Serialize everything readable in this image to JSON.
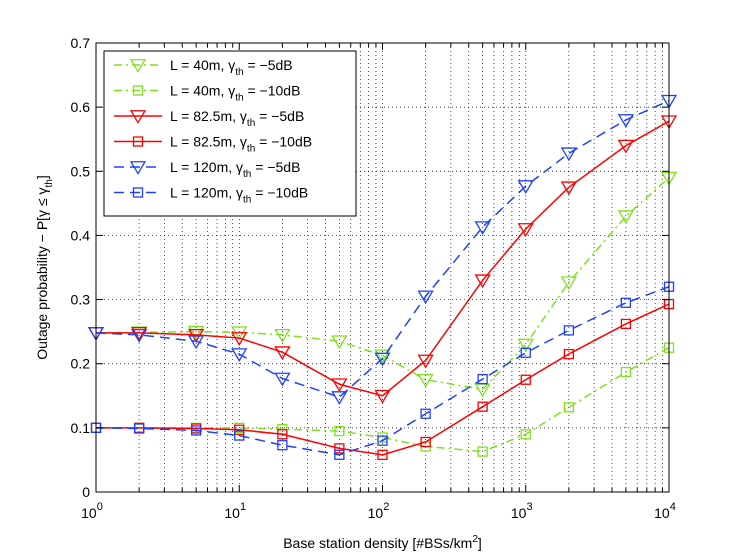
{
  "chart_data": {
    "type": "line",
    "x_scale": "log",
    "xlim": [
      1,
      10000
    ],
    "ylim": [
      0,
      0.7
    ],
    "grid": true,
    "xlabel_parts": {
      "main": "Base station density [#BSs/km",
      "sup": "2",
      "end": "]"
    },
    "ylabel_parts": {
      "main": "Outage probability − P[γ ≤ γ",
      "sub": "th",
      "end": "]"
    },
    "x_ticks": [
      {
        "value": 1,
        "base": "10",
        "exp": "0"
      },
      {
        "value": 10,
        "base": "10",
        "exp": "1"
      },
      {
        "value": 100,
        "base": "10",
        "exp": "2"
      },
      {
        "value": 1000,
        "base": "10",
        "exp": "3"
      },
      {
        "value": 10000,
        "base": "10",
        "exp": "4"
      }
    ],
    "y_ticks": [
      {
        "value": 0,
        "label": "0"
      },
      {
        "value": 0.1,
        "label": "0.1"
      },
      {
        "value": 0.2,
        "label": "0.2"
      },
      {
        "value": 0.3,
        "label": "0.3"
      },
      {
        "value": 0.4,
        "label": "0.4"
      },
      {
        "value": 0.5,
        "label": "0.5"
      },
      {
        "value": 0.6,
        "label": "0.6"
      },
      {
        "value": 0.7,
        "label": "0.7"
      }
    ],
    "x": [
      1,
      2,
      5,
      10,
      20,
      50,
      100,
      200,
      500,
      1000,
      2000,
      5000,
      10000
    ],
    "legend_position": "top-left",
    "series": [
      {
        "name": "L = 40m, γth = −5dB",
        "legend_main": "L = 40m, γ",
        "legend_sub": "th",
        "legend_end": " = −5dB",
        "color": "#7fe020",
        "dash": "dashdot",
        "marker": "triangle-down",
        "values": [
          0.248,
          0.249,
          0.25,
          0.249,
          0.245,
          0.235,
          0.213,
          0.175,
          0.16,
          0.23,
          0.327,
          0.43,
          0.49
        ]
      },
      {
        "name": "L = 40m, γth = −10dB",
        "legend_main": "L = 40m, γ",
        "legend_sub": "th",
        "legend_end": " = −10dB",
        "color": "#7fe020",
        "dash": "dashdot",
        "marker": "square",
        "values": [
          0.1,
          0.1,
          0.1,
          0.1,
          0.098,
          0.095,
          0.085,
          0.071,
          0.063,
          0.09,
          0.132,
          0.187,
          0.225
        ]
      },
      {
        "name": "L = 82.5m, γth = −5dB",
        "legend_main": "L = 82.5m, γ",
        "legend_sub": "th",
        "legend_end": " = −5dB",
        "color": "#ff0000",
        "dash": "solid",
        "marker": "triangle-down",
        "values": [
          0.248,
          0.248,
          0.245,
          0.24,
          0.218,
          0.168,
          0.15,
          0.205,
          0.33,
          0.41,
          0.475,
          0.54,
          0.578
        ]
      },
      {
        "name": "L = 82.5m, γth = −10dB",
        "legend_main": "L = 82.5m, γ",
        "legend_sub": "th",
        "legend_end": " = −10dB",
        "color": "#ff0000",
        "dash": "solid",
        "marker": "square",
        "values": [
          0.1,
          0.1,
          0.099,
          0.097,
          0.09,
          0.068,
          0.058,
          0.078,
          0.133,
          0.175,
          0.215,
          0.262,
          0.293
        ]
      },
      {
        "name": "L = 120m, γth = −5dB",
        "legend_main": "L = 120m, γ",
        "legend_sub": "th",
        "legend_end": " = −5dB",
        "color": "#2040ff",
        "dash": "dashed",
        "marker": "triangle-down",
        "values": [
          0.248,
          0.245,
          0.235,
          0.215,
          0.177,
          0.148,
          0.208,
          0.305,
          0.413,
          0.477,
          0.528,
          0.58,
          0.61
        ]
      },
      {
        "name": "L = 120m, γth = −10dB",
        "legend_main": "L = 120m, γ",
        "legend_sub": "th",
        "legend_end": " = −10dB",
        "color": "#2040ff",
        "dash": "dashed",
        "marker": "square",
        "values": [
          0.1,
          0.099,
          0.096,
          0.088,
          0.073,
          0.058,
          0.08,
          0.122,
          0.176,
          0.217,
          0.252,
          0.295,
          0.32
        ]
      }
    ]
  }
}
